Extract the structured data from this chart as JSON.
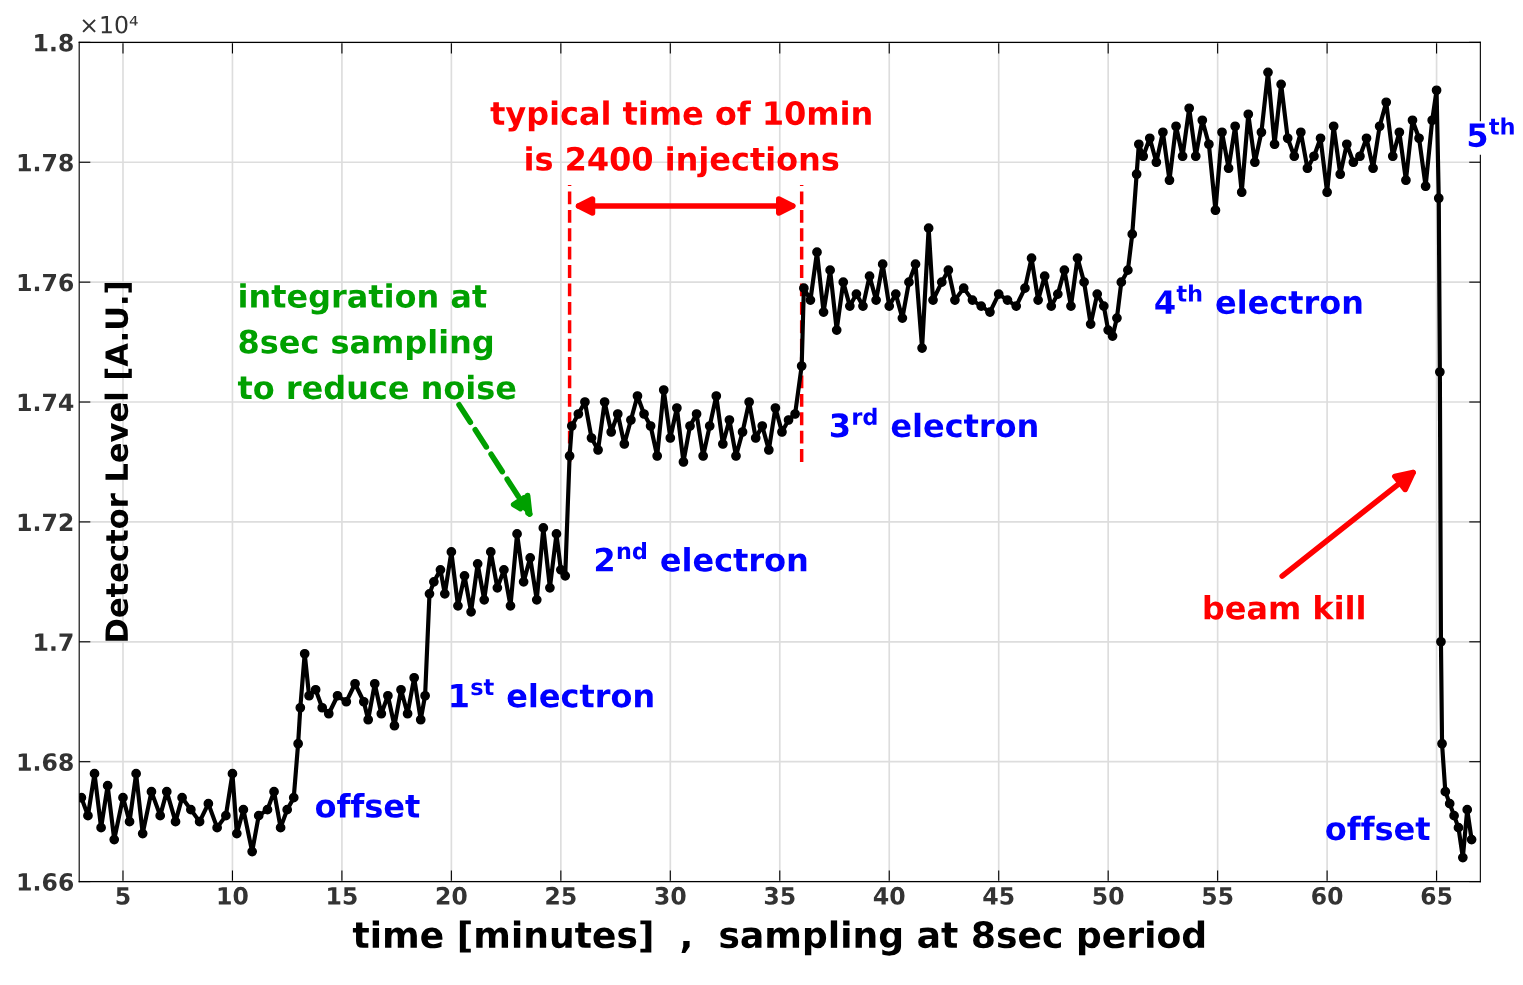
{
  "chart_data": {
    "type": "line",
    "xlabel": "time [minutes]  ,  sampling at 8sec period",
    "ylabel": "Detector Level [A.U.]",
    "xlim": [
      3,
      67
    ],
    "xticks": [
      5,
      10,
      15,
      20,
      25,
      30,
      35,
      40,
      45,
      50,
      55,
      60,
      65
    ],
    "ylim": [
      1.66,
      1.8
    ],
    "yticks": [
      1.66,
      1.68,
      1.7,
      1.72,
      1.74,
      1.76,
      1.78,
      1.8
    ],
    "grid": true,
    "marker": "circle",
    "line_style": "solid",
    "series": [
      {
        "color": "#000000",
        "x": [
          3.1,
          3.4,
          3.7,
          4.0,
          4.3,
          4.6,
          5.0,
          5.3,
          5.6,
          5.9,
          6.3,
          6.7,
          7.0,
          7.4,
          7.7,
          8.1,
          8.5,
          8.9,
          9.3,
          9.7,
          10.0,
          10.2,
          10.5,
          10.9,
          11.2,
          11.6,
          11.9,
          12.2,
          12.5,
          12.8,
          13.0,
          13.1,
          13.3,
          13.5,
          13.8,
          14.1,
          14.4,
          14.8,
          15.2,
          15.6,
          16.0,
          16.2,
          16.5,
          16.8,
          17.1,
          17.4,
          17.7,
          18.0,
          18.3,
          18.6,
          18.8,
          19.0,
          19.2,
          19.5,
          19.7,
          20.0,
          20.3,
          20.6,
          20.9,
          21.2,
          21.5,
          21.8,
          22.1,
          22.4,
          22.7,
          23.0,
          23.3,
          23.6,
          23.9,
          24.2,
          24.5,
          24.8,
          25.0,
          25.2,
          25.4,
          25.5,
          25.8,
          26.1,
          26.4,
          26.7,
          27.0,
          27.3,
          27.6,
          27.9,
          28.2,
          28.5,
          28.8,
          29.1,
          29.4,
          29.7,
          30.0,
          30.3,
          30.6,
          30.9,
          31.2,
          31.5,
          31.8,
          32.1,
          32.4,
          32.7,
          33.0,
          33.3,
          33.6,
          33.9,
          34.2,
          34.5,
          34.8,
          35.1,
          35.4,
          35.7,
          36.0,
          36.1,
          36.4,
          36.7,
          37.0,
          37.3,
          37.6,
          37.9,
          38.2,
          38.5,
          38.8,
          39.1,
          39.4,
          39.7,
          40.0,
          40.3,
          40.6,
          40.9,
          41.2,
          41.5,
          41.8,
          42.0,
          42.4,
          42.7,
          43.0,
          43.4,
          43.8,
          44.2,
          44.6,
          45.0,
          45.4,
          45.8,
          46.2,
          46.5,
          46.8,
          47.1,
          47.4,
          47.7,
          48.0,
          48.3,
          48.6,
          48.9,
          49.2,
          49.5,
          49.8,
          50.0,
          50.2,
          50.4,
          50.6,
          50.9,
          51.1,
          51.3,
          51.4,
          51.6,
          51.9,
          52.2,
          52.5,
          52.8,
          53.1,
          53.4,
          53.7,
          54.0,
          54.3,
          54.6,
          54.9,
          55.2,
          55.5,
          55.8,
          56.1,
          56.4,
          56.7,
          57.0,
          57.3,
          57.6,
          57.9,
          58.2,
          58.5,
          58.8,
          59.1,
          59.4,
          59.7,
          60.0,
          60.3,
          60.6,
          60.9,
          61.2,
          61.5,
          61.8,
          62.1,
          62.4,
          62.7,
          63.0,
          63.3,
          63.6,
          63.9,
          64.2,
          64.5,
          64.8,
          65.0,
          65.1,
          65.15,
          65.2,
          65.25,
          65.4,
          65.6,
          65.8,
          66.0,
          66.2,
          66.4,
          66.6
        ],
        "values": [
          1.674,
          1.671,
          1.678,
          1.669,
          1.676,
          1.667,
          1.674,
          1.67,
          1.678,
          1.668,
          1.675,
          1.671,
          1.675,
          1.67,
          1.674,
          1.672,
          1.67,
          1.673,
          1.669,
          1.671,
          1.678,
          1.668,
          1.672,
          1.665,
          1.671,
          1.672,
          1.675,
          1.669,
          1.672,
          1.674,
          1.683,
          1.689,
          1.698,
          1.691,
          1.692,
          1.689,
          1.688,
          1.691,
          1.69,
          1.693,
          1.69,
          1.687,
          1.693,
          1.688,
          1.691,
          1.686,
          1.692,
          1.688,
          1.694,
          1.687,
          1.691,
          1.708,
          1.71,
          1.712,
          1.708,
          1.715,
          1.706,
          1.711,
          1.705,
          1.713,
          1.707,
          1.715,
          1.709,
          1.712,
          1.706,
          1.718,
          1.71,
          1.714,
          1.707,
          1.719,
          1.709,
          1.718,
          1.712,
          1.711,
          1.731,
          1.736,
          1.738,
          1.74,
          1.734,
          1.732,
          1.74,
          1.735,
          1.738,
          1.733,
          1.737,
          1.741,
          1.738,
          1.736,
          1.731,
          1.742,
          1.734,
          1.739,
          1.73,
          1.736,
          1.738,
          1.731,
          1.736,
          1.741,
          1.733,
          1.737,
          1.731,
          1.735,
          1.74,
          1.734,
          1.736,
          1.732,
          1.739,
          1.735,
          1.737,
          1.738,
          1.746,
          1.759,
          1.757,
          1.765,
          1.755,
          1.762,
          1.752,
          1.76,
          1.756,
          1.758,
          1.756,
          1.761,
          1.757,
          1.763,
          1.756,
          1.758,
          1.754,
          1.76,
          1.763,
          1.749,
          1.769,
          1.757,
          1.76,
          1.762,
          1.757,
          1.759,
          1.757,
          1.756,
          1.755,
          1.758,
          1.757,
          1.756,
          1.759,
          1.764,
          1.757,
          1.761,
          1.756,
          1.758,
          1.762,
          1.756,
          1.764,
          1.76,
          1.753,
          1.758,
          1.756,
          1.752,
          1.751,
          1.754,
          1.76,
          1.762,
          1.768,
          1.778,
          1.783,
          1.781,
          1.784,
          1.78,
          1.785,
          1.777,
          1.786,
          1.781,
          1.789,
          1.781,
          1.787,
          1.783,
          1.772,
          1.785,
          1.779,
          1.786,
          1.775,
          1.788,
          1.78,
          1.785,
          1.795,
          1.783,
          1.793,
          1.784,
          1.781,
          1.785,
          1.779,
          1.781,
          1.784,
          1.775,
          1.786,
          1.778,
          1.783,
          1.78,
          1.781,
          1.784,
          1.779,
          1.786,
          1.79,
          1.781,
          1.785,
          1.777,
          1.787,
          1.784,
          1.776,
          1.787,
          1.792,
          1.774,
          1.745,
          1.7,
          1.683,
          1.675,
          1.673,
          1.671,
          1.669,
          1.664,
          1.672,
          1.667
        ]
      }
    ],
    "ref_lines": [
      {
        "axis": "x",
        "value": 25.4,
        "color": "#ff0000",
        "line_style": "dashed"
      },
      {
        "axis": "x",
        "value": 36.0,
        "color": "#ff0000",
        "line_style": "dashed"
      }
    ],
    "annotations": [
      "×10⁴",
      "typical time of 10min\nis 2400 injections",
      "integration at\n8sec sampling\nto reduce noise",
      "offset",
      "1$^{st}$ electron",
      "2$^{nd}$ electron",
      "3$^{rd}$ electron",
      "4$^{th}$ electron",
      "5$^{th}$",
      "beam kill",
      "offset"
    ]
  }
}
